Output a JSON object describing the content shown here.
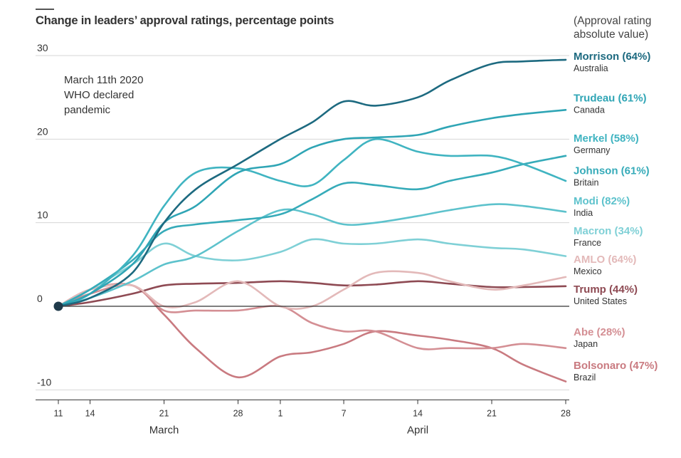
{
  "title": "Change in leaders’ approval ratings, percentage points",
  "right_note": "(Approval rating\nabsolute value)",
  "annotation": [
    "March 11th 2020",
    "WHO declared",
    "pandemic"
  ],
  "colors": {
    "axis": "#333333",
    "grid": "#d6d6d6",
    "zero_line": "#333333"
  },
  "chart_data": {
    "type": "line",
    "ylim": [
      -10,
      30
    ],
    "yticks": [
      -10,
      0,
      10,
      20,
      30
    ],
    "xlim": [
      "2020-03-11",
      "2020-04-28"
    ],
    "xticks": [
      {
        "date": "2020-03-11",
        "label": "11"
      },
      {
        "date": "2020-03-14",
        "label": "14"
      },
      {
        "date": "2020-03-21",
        "label": "21"
      },
      {
        "date": "2020-03-28",
        "label": "28"
      },
      {
        "date": "2020-04-01",
        "label": "1"
      },
      {
        "date": "2020-04-07",
        "label": "7"
      },
      {
        "date": "2020-04-14",
        "label": "14"
      },
      {
        "date": "2020-04-21",
        "label": "21"
      },
      {
        "date": "2020-04-28",
        "label": "28"
      }
    ],
    "months": [
      {
        "date": "2020-03-21",
        "label": "March"
      },
      {
        "date": "2020-04-14",
        "label": "April"
      }
    ],
    "annotation_point": {
      "date": "2020-03-11",
      "value": 0
    },
    "series": [
      {
        "name": "Morrison (64%)",
        "country": "Australia",
        "color": "#1d6a80",
        "labelY": 29.5,
        "points": [
          [
            "2020-03-11",
            0
          ],
          [
            "2020-03-14",
            1
          ],
          [
            "2020-03-18",
            4
          ],
          [
            "2020-03-21",
            10
          ],
          [
            "2020-03-24",
            14
          ],
          [
            "2020-03-28",
            17
          ],
          [
            "2020-04-01",
            20
          ],
          [
            "2020-04-04",
            22
          ],
          [
            "2020-04-07",
            24.5
          ],
          [
            "2020-04-10",
            24
          ],
          [
            "2020-04-14",
            25
          ],
          [
            "2020-04-17",
            27
          ],
          [
            "2020-04-21",
            29
          ],
          [
            "2020-04-24",
            29.3
          ],
          [
            "2020-04-28",
            29.5
          ]
        ]
      },
      {
        "name": "Trudeau (61%)",
        "country": "Canada",
        "color": "#2fa5b5",
        "labelY": 24.5,
        "points": [
          [
            "2020-03-11",
            0
          ],
          [
            "2020-03-14",
            1.5
          ],
          [
            "2020-03-18",
            5
          ],
          [
            "2020-03-21",
            10
          ],
          [
            "2020-03-24",
            12
          ],
          [
            "2020-03-28",
            16
          ],
          [
            "2020-04-01",
            17
          ],
          [
            "2020-04-04",
            19
          ],
          [
            "2020-04-07",
            20
          ],
          [
            "2020-04-10",
            20.2
          ],
          [
            "2020-04-14",
            20.5
          ],
          [
            "2020-04-17",
            21.5
          ],
          [
            "2020-04-21",
            22.5
          ],
          [
            "2020-04-24",
            23
          ],
          [
            "2020-04-28",
            23.5
          ]
        ]
      },
      {
        "name": "Merkel (58%)",
        "country": "Germany",
        "color": "#40b4c1",
        "labelY": 19.7,
        "points": [
          [
            "2020-03-11",
            0
          ],
          [
            "2020-03-14",
            1.5
          ],
          [
            "2020-03-18",
            6
          ],
          [
            "2020-03-21",
            12
          ],
          [
            "2020-03-24",
            16
          ],
          [
            "2020-03-28",
            16.5
          ],
          [
            "2020-04-01",
            15
          ],
          [
            "2020-04-04",
            14.5
          ],
          [
            "2020-04-07",
            17.5
          ],
          [
            "2020-04-10",
            20
          ],
          [
            "2020-04-14",
            18.5
          ],
          [
            "2020-04-17",
            18
          ],
          [
            "2020-04-21",
            18
          ],
          [
            "2020-04-24",
            17
          ],
          [
            "2020-04-28",
            15
          ]
        ]
      },
      {
        "name": "Johnson (61%)",
        "country": "Britain",
        "color": "#36abb9",
        "labelY": 15.8,
        "points": [
          [
            "2020-03-11",
            0
          ],
          [
            "2020-03-14",
            2
          ],
          [
            "2020-03-18",
            5.5
          ],
          [
            "2020-03-21",
            9
          ],
          [
            "2020-03-24",
            9.8
          ],
          [
            "2020-03-28",
            10.3
          ],
          [
            "2020-04-01",
            11
          ],
          [
            "2020-04-04",
            12.8
          ],
          [
            "2020-04-07",
            14.7
          ],
          [
            "2020-04-10",
            14.5
          ],
          [
            "2020-04-14",
            14
          ],
          [
            "2020-04-17",
            15
          ],
          [
            "2020-04-21",
            16
          ],
          [
            "2020-04-24",
            17
          ],
          [
            "2020-04-28",
            18
          ]
        ]
      },
      {
        "name": "Modi (82%)",
        "country": "India",
        "color": "#5dc2cc",
        "labelY": 12.2,
        "points": [
          [
            "2020-03-11",
            0
          ],
          [
            "2020-03-14",
            1
          ],
          [
            "2020-03-18",
            3
          ],
          [
            "2020-03-21",
            5
          ],
          [
            "2020-03-24",
            6
          ],
          [
            "2020-03-28",
            9
          ],
          [
            "2020-04-01",
            11.5
          ],
          [
            "2020-04-04",
            11
          ],
          [
            "2020-04-07",
            9.8
          ],
          [
            "2020-04-10",
            10
          ],
          [
            "2020-04-14",
            10.8
          ],
          [
            "2020-04-17",
            11.5
          ],
          [
            "2020-04-21",
            12.2
          ],
          [
            "2020-04-24",
            12
          ],
          [
            "2020-04-28",
            11.3
          ]
        ]
      },
      {
        "name": "Macron (34%)",
        "country": "France",
        "color": "#7fd0d6",
        "labelY": 8.6,
        "points": [
          [
            "2020-03-11",
            0
          ],
          [
            "2020-03-14",
            2
          ],
          [
            "2020-03-18",
            5
          ],
          [
            "2020-03-21",
            7.5
          ],
          [
            "2020-03-24",
            6
          ],
          [
            "2020-03-28",
            5.5
          ],
          [
            "2020-04-01",
            6.5
          ],
          [
            "2020-04-04",
            8
          ],
          [
            "2020-04-07",
            7.5
          ],
          [
            "2020-04-10",
            7.5
          ],
          [
            "2020-04-14",
            8
          ],
          [
            "2020-04-17",
            7.5
          ],
          [
            "2020-04-21",
            7
          ],
          [
            "2020-04-24",
            6.8
          ],
          [
            "2020-04-28",
            6
          ]
        ]
      },
      {
        "name": "AMLO (64%)",
        "country": "Mexico",
        "color": "#e3b9b9",
        "labelY": 5.2,
        "points": [
          [
            "2020-03-11",
            0
          ],
          [
            "2020-03-14",
            2
          ],
          [
            "2020-03-18",
            2.5
          ],
          [
            "2020-03-21",
            0
          ],
          [
            "2020-03-24",
            0.5
          ],
          [
            "2020-03-28",
            3
          ],
          [
            "2020-04-01",
            0
          ],
          [
            "2020-04-04",
            0
          ],
          [
            "2020-04-07",
            2
          ],
          [
            "2020-04-10",
            4
          ],
          [
            "2020-04-14",
            4
          ],
          [
            "2020-04-17",
            3
          ],
          [
            "2020-04-21",
            2
          ],
          [
            "2020-04-24",
            2.5
          ],
          [
            "2020-04-28",
            3.5
          ]
        ]
      },
      {
        "name": "Trump (44%)",
        "country": "United States",
        "color": "#8e4a53",
        "labelY": 1.6,
        "points": [
          [
            "2020-03-11",
            0
          ],
          [
            "2020-03-14",
            0.5
          ],
          [
            "2020-03-18",
            1.5
          ],
          [
            "2020-03-21",
            2.5
          ],
          [
            "2020-03-24",
            2.7
          ],
          [
            "2020-03-28",
            2.8
          ],
          [
            "2020-04-01",
            3
          ],
          [
            "2020-04-04",
            2.8
          ],
          [
            "2020-04-07",
            2.5
          ],
          [
            "2020-04-10",
            2.6
          ],
          [
            "2020-04-14",
            3
          ],
          [
            "2020-04-17",
            2.7
          ],
          [
            "2020-04-21",
            2.3
          ],
          [
            "2020-04-24",
            2.3
          ],
          [
            "2020-04-28",
            2.4
          ]
        ]
      },
      {
        "name": "Abe (28%)",
        "country": "Japan",
        "color": "#d48f94",
        "labelY": -3.5,
        "points": [
          [
            "2020-03-11",
            0
          ],
          [
            "2020-03-14",
            1.5
          ],
          [
            "2020-03-18",
            2.5
          ],
          [
            "2020-03-21",
            -0.5
          ],
          [
            "2020-03-24",
            -0.5
          ],
          [
            "2020-03-28",
            -0.5
          ],
          [
            "2020-04-01",
            0
          ],
          [
            "2020-04-04",
            -2
          ],
          [
            "2020-04-07",
            -3
          ],
          [
            "2020-04-10",
            -3
          ],
          [
            "2020-04-14",
            -5
          ],
          [
            "2020-04-17",
            -5
          ],
          [
            "2020-04-21",
            -5
          ],
          [
            "2020-04-24",
            -4.5
          ],
          [
            "2020-04-28",
            -5
          ]
        ]
      },
      {
        "name": "Bolsonaro (47%)",
        "country": "Brazil",
        "color": "#c97a80",
        "labelY": -7.5,
        "points": [
          [
            "2020-03-11",
            0
          ],
          [
            "2020-03-14",
            2
          ],
          [
            "2020-03-18",
            2.5
          ],
          [
            "2020-03-21",
            -1
          ],
          [
            "2020-03-24",
            -5
          ],
          [
            "2020-03-28",
            -8.5
          ],
          [
            "2020-04-01",
            -6
          ],
          [
            "2020-04-04",
            -5.5
          ],
          [
            "2020-04-07",
            -4.5
          ],
          [
            "2020-04-10",
            -3
          ],
          [
            "2020-04-14",
            -3.5
          ],
          [
            "2020-04-17",
            -4
          ],
          [
            "2020-04-21",
            -5
          ],
          [
            "2020-04-24",
            -7
          ],
          [
            "2020-04-28",
            -9
          ]
        ]
      }
    ]
  }
}
